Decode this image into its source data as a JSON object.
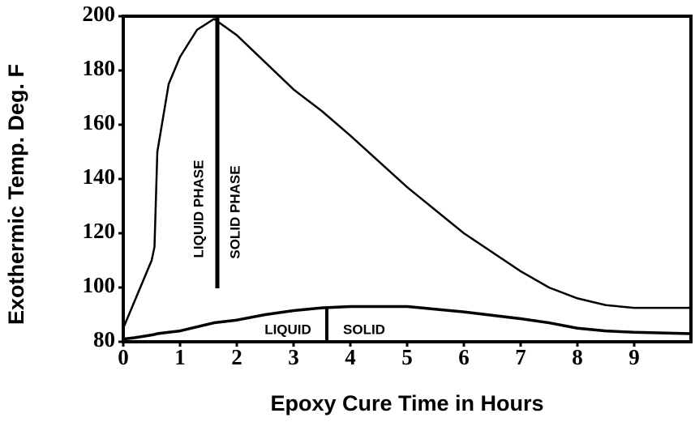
{
  "chart_data": {
    "type": "line",
    "x_label": "Epoxy Cure Time in Hours",
    "y_label": "Exothermic Temp. Deg. F",
    "x": [
      0,
      0.2,
      0.5,
      0.55,
      0.6,
      0.8,
      1.0,
      1.3,
      1.6,
      2.0,
      2.5,
      3.0,
      3.5,
      4.0,
      5.0,
      6.0,
      7.0,
      7.5,
      8.0,
      8.5,
      9.0,
      10.0
    ],
    "series": [
      {
        "color": "#000000",
        "values": [
          85,
          95,
          110,
          115,
          150,
          175,
          185,
          195,
          199,
          193,
          183,
          173,
          165,
          156,
          137,
          120,
          106,
          100,
          96,
          93.5,
          92.5,
          92.5
        ]
      },
      {
        "color": "#000000",
        "values": [
          81,
          81.5,
          82.5,
          82.7,
          83,
          83.5,
          84,
          85.5,
          87,
          88,
          90,
          91.5,
          92.5,
          93,
          93,
          91,
          88.5,
          87,
          85,
          84,
          83.5,
          83
        ]
      }
    ],
    "annotations": [
      "LIQUID PHASE",
      "SOLID PHASE",
      "LIQUID",
      "SOLID"
    ],
    "xlim": [
      0,
      10
    ],
    "xticks": [
      0,
      1,
      2,
      3,
      4,
      5,
      6,
      7,
      8,
      9
    ],
    "ylim": [
      80,
      200
    ],
    "yticks": [
      80,
      100,
      120,
      140,
      160,
      180,
      200
    ]
  }
}
